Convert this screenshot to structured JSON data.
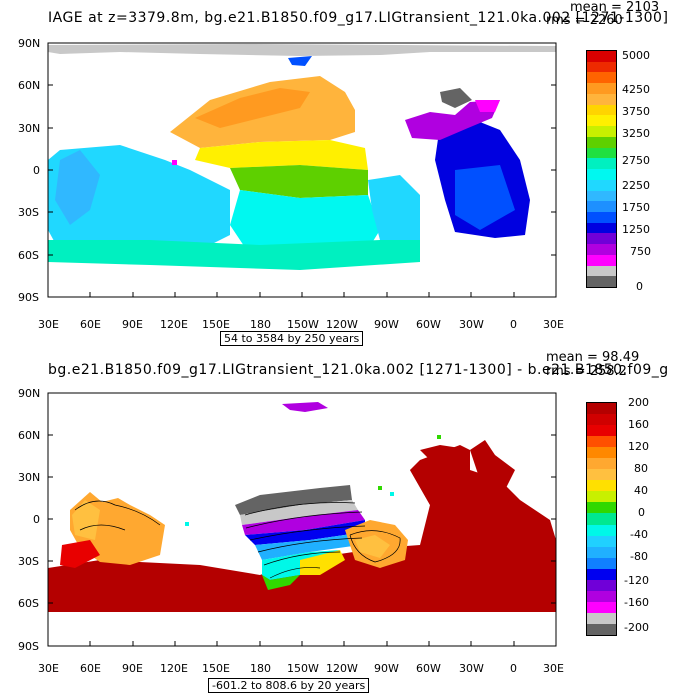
{
  "panel1": {
    "title": "IAGE at z=3379.8m, bg.e21.B1850.f09_g17.LIGtransient_121.0ka.002 [1271-1300]",
    "mean_label": "mean = 2103",
    "rms_label": "rms = 2260",
    "range_label": "54 to 3584 by 250 years",
    "colorbar_labels": [
      "5000",
      "4250",
      "3750",
      "3250",
      "2750",
      "2250",
      "1750",
      "1250",
      "750",
      "0"
    ],
    "colorbar_colors": [
      "#d90000",
      "#ee2a00",
      "#ff6400",
      "#ff9a20",
      "#ffb43c",
      "#ffd400",
      "#fff000",
      "#c8f000",
      "#5ed000",
      "#20e040",
      "#00f0c0",
      "#00f8f0",
      "#20d8ff",
      "#30b8ff",
      "#1e90ff",
      "#0050ff",
      "#0000e0",
      "#7000d8",
      "#b000e0",
      "#ff00ff",
      "#c8c8c8",
      "#646464"
    ]
  },
  "panel2": {
    "title": "bg.e21.B1850.f09_g17.LIGtransient_121.0ka.002 [1271-1300] - b.e21.B1850.f09_g",
    "mean_label": "mean = 98.49",
    "rms_label": "rms = 258.2",
    "range_label": "-601.2 to 808.6 by 20 years",
    "colorbar_labels": [
      "200",
      "160",
      "120",
      "80",
      "40",
      "0",
      "-40",
      "-80",
      "-120",
      "-160",
      "-200"
    ],
    "colorbar_colors": [
      "#b40000",
      "#d00000",
      "#e80000",
      "#ff5000",
      "#ff8800",
      "#ffa830",
      "#ffc040",
      "#ffe000",
      "#c8f000",
      "#30d800",
      "#00e890",
      "#00f8e8",
      "#20d0ff",
      "#20b0ff",
      "#1080ff",
      "#0000f0",
      "#7000d8",
      "#b000e0",
      "#ff00ff",
      "#c8c8c8",
      "#646464"
    ]
  },
  "axes": {
    "lat_labels": [
      "90N",
      "60N",
      "30N",
      "0",
      "30S",
      "60S",
      "90S"
    ],
    "lon_labels": [
      "30E",
      "60E",
      "90E",
      "120E",
      "150E",
      "180",
      "150W",
      "120W",
      "90W",
      "60W",
      "30W",
      "0",
      "30E"
    ]
  }
}
